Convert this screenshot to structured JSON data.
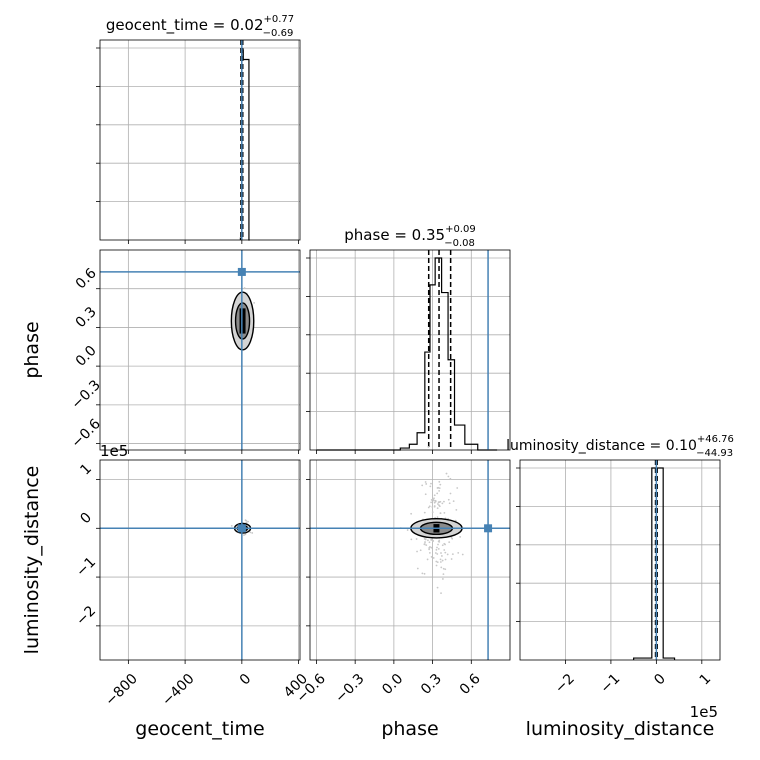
{
  "chart_data": [
    {
      "type": "histogram",
      "panel": "geocent_time-marginal",
      "title": "geocent_time = 0.02",
      "title_sup": "+0.77",
      "title_sub": "−0.69",
      "xlim": [
        -1000,
        410
      ],
      "bins": [
        {
          "x0": -10,
          "x1": 0,
          "h": 0.01
        },
        {
          "x0": 0,
          "x1": 10,
          "h": 0.99
        },
        {
          "x0": 10,
          "x1": 50,
          "h": 0.94
        },
        {
          "x0": 50,
          "x1": 55,
          "h": 0.0
        }
      ],
      "quantile_lines": [
        -0.67,
        0.02,
        0.79
      ],
      "truth": 0.0,
      "grid": true
    },
    {
      "type": "histogram",
      "panel": "phase-marginal",
      "title": "phase = 0.35",
      "title_sup": "+0.09",
      "title_sub": "−0.08",
      "xlim": [
        -0.65,
        0.9
      ],
      "bins": [
        {
          "x0": -0.6,
          "x1": 0.05,
          "h": 0.0
        },
        {
          "x0": 0.05,
          "x1": 0.12,
          "h": 0.01
        },
        {
          "x0": 0.12,
          "x1": 0.18,
          "h": 0.03
        },
        {
          "x0": 0.18,
          "x1": 0.24,
          "h": 0.09
        },
        {
          "x0": 0.24,
          "x1": 0.28,
          "h": 0.51
        },
        {
          "x0": 0.28,
          "x1": 0.32,
          "h": 0.86
        },
        {
          "x0": 0.32,
          "x1": 0.37,
          "h": 1.0
        },
        {
          "x0": 0.37,
          "x1": 0.42,
          "h": 0.82
        },
        {
          "x0": 0.42,
          "x1": 0.47,
          "h": 0.47
        },
        {
          "x0": 0.47,
          "x1": 0.55,
          "h": 0.13
        },
        {
          "x0": 0.55,
          "x1": 0.65,
          "h": 0.03
        },
        {
          "x0": 0.65,
          "x1": 0.8,
          "h": 0.0
        }
      ],
      "quantile_lines": [
        0.27,
        0.35,
        0.44
      ],
      "truth": 0.73,
      "grid": true
    },
    {
      "type": "histogram",
      "panel": "luminosity_distance-marginal",
      "title": "luminosity_distance = 0.10",
      "title_sup": "+46.76",
      "title_sub": "−44.93",
      "xlim": [
        -300000,
        140000
      ],
      "bins": [
        {
          "x0": -50000,
          "x1": -10000,
          "h": 0.01
        },
        {
          "x0": -10000,
          "x1": 15000,
          "h": 1.0
        },
        {
          "x0": 15000,
          "x1": 40000,
          "h": 0.01
        }
      ],
      "quantile_lines": [
        -45,
        0.1,
        47
      ],
      "truth": 0.0,
      "grid": true
    },
    {
      "type": "scatter",
      "panel": "phase-vs-geocent_time",
      "xlim": [
        -1000,
        410
      ],
      "ylim": [
        -0.65,
        0.9
      ],
      "truth": [
        0.0,
        0.73
      ],
      "contour_center": [
        5,
        0.35
      ],
      "grid": true
    },
    {
      "type": "scatter",
      "panel": "luminosity_distance-vs-geocent_time",
      "xlim": [
        -1000,
        410
      ],
      "ylim": [
        -270000,
        140000
      ],
      "truth": [
        0.0,
        0.0
      ],
      "contour_center": [
        5,
        0
      ],
      "grid": true
    },
    {
      "type": "scatter",
      "panel": "luminosity_distance-vs-phase",
      "xlim": [
        -0.65,
        0.9
      ],
      "ylim": [
        -270000,
        140000
      ],
      "truth": [
        0.73,
        0.0
      ],
      "contour_center": [
        0.33,
        0
      ],
      "grid": true
    }
  ],
  "axes": {
    "geocent_time": {
      "label": "geocent_time",
      "ticks": [
        -800,
        -400,
        0,
        400
      ],
      "tick_labels": [
        "−800",
        "−400",
        "0",
        "400"
      ]
    },
    "phase": {
      "label": "phase",
      "ticks": [
        -0.6,
        -0.3,
        0.0,
        0.3,
        0.6
      ],
      "tick_labels": [
        "−0.6",
        "−0.3",
        "0.0",
        "0.3",
        "0.6"
      ]
    },
    "luminosity_distance": {
      "label": "luminosity_distance",
      "ticks": [
        -200000,
        -100000,
        0,
        100000
      ],
      "tick_labels": [
        "−2",
        "−1",
        "0",
        "1"
      ],
      "offset_label": "1e5"
    }
  },
  "colors": {
    "truth": "#4682b4",
    "hist": "#000000",
    "grid": "#b0b0b0",
    "points": "#c8c8c8"
  }
}
